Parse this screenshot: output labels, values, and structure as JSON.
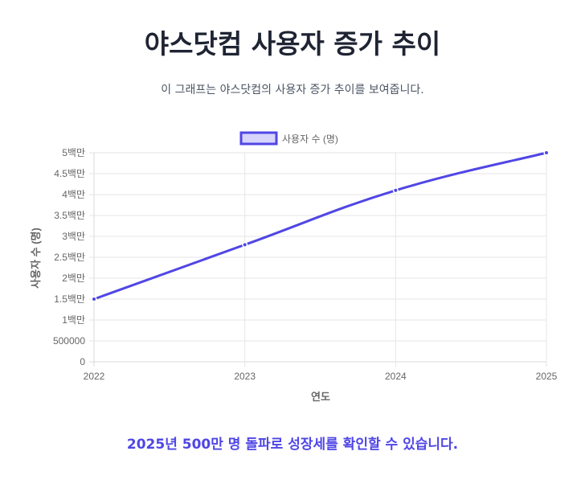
{
  "header": {
    "title": "야스닷컴 사용자 증가 추이",
    "subtitle": "이 그래프는 야스닷컴의 사용자 증가 추이를 보여줍니다."
  },
  "footer": {
    "message": "2025년 500만 명 돌파로 성장세를 확인할 수 있습니다."
  },
  "colors": {
    "line": "#5046e5",
    "legend_fill": "#d6d4fb",
    "grid": "#e6e6e6",
    "tick_text": "#666666",
    "footer_text": "#4f46e5"
  },
  "chart_data": {
    "type": "line",
    "title": "",
    "categories": [
      "2022",
      "2023",
      "2024",
      "2025"
    ],
    "series": [
      {
        "name": "사용자 수 (명)",
        "values": [
          1500000,
          2800000,
          4100000,
          5000000
        ]
      }
    ],
    "xlabel": "연도",
    "ylabel": "사용자 수 (명)",
    "ylim": [
      0,
      5000000
    ],
    "yticks": [
      "0",
      "500000",
      "1백만",
      "1.5백만",
      "2백만",
      "2.5백만",
      "3백만",
      "3.5백만",
      "4백만",
      "4.5백만",
      "5백만"
    ],
    "grid": true,
    "legend_position": "top",
    "curve": "smooth (monotone)"
  }
}
